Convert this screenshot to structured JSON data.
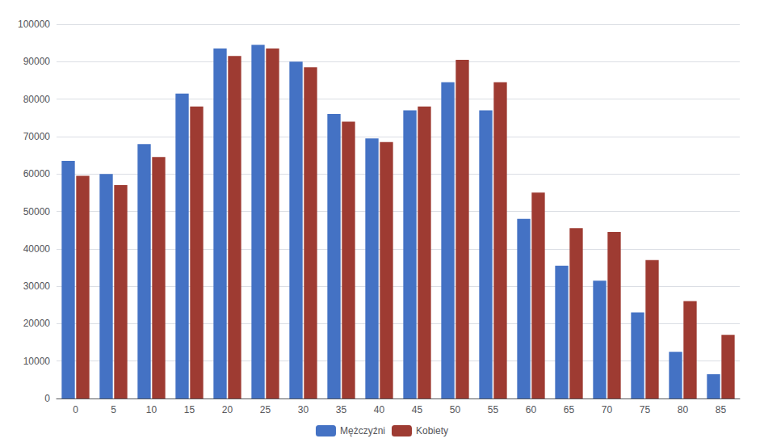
{
  "chart_data": {
    "type": "bar",
    "categories": [
      "0",
      "5",
      "10",
      "15",
      "20",
      "25",
      "30",
      "35",
      "40",
      "45",
      "50",
      "55",
      "60",
      "65",
      "70",
      "75",
      "80",
      "85"
    ],
    "series": [
      {
        "name": "Mężczyźni",
        "color": "#4472C4",
        "values": [
          63500,
          60000,
          68000,
          81500,
          93500,
          94500,
          90000,
          76000,
          69500,
          77000,
          84500,
          77000,
          48000,
          35500,
          31500,
          23000,
          12500,
          6500
        ]
      },
      {
        "name": "Kobiety",
        "color": "#9E3B32",
        "values": [
          59500,
          57000,
          64500,
          78000,
          91500,
          93500,
          88500,
          74000,
          68500,
          78000,
          90500,
          84500,
          55000,
          45500,
          44500,
          37000,
          26000,
          17000
        ]
      }
    ],
    "ylim": [
      0,
      100000
    ],
    "yticks": [
      0,
      10000,
      20000,
      30000,
      40000,
      50000,
      60000,
      70000,
      80000,
      90000,
      100000
    ],
    "grid": true,
    "legend": "bottom"
  }
}
